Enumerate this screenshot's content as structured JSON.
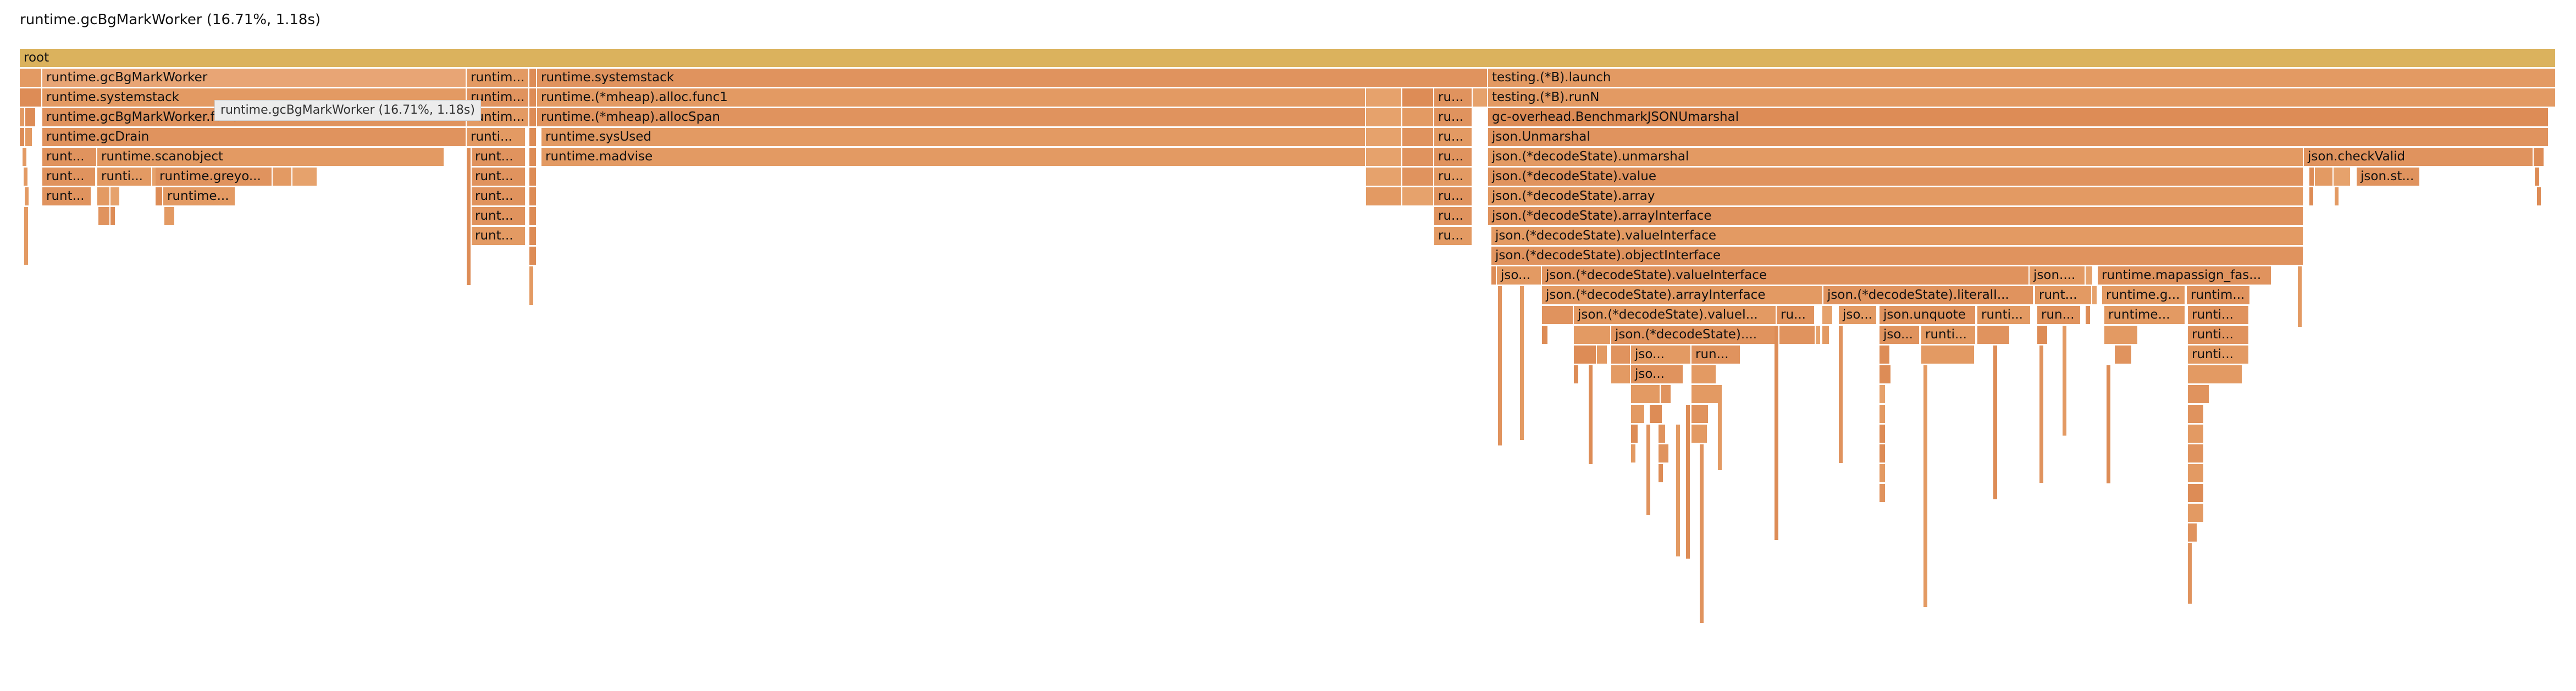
{
  "header": {
    "title": "runtime.gcBgMarkWorker (16.71%, 1.18s)"
  },
  "tooltip": {
    "text": "runtime.gcBgMarkWorker (16.71%, 1.18s)"
  },
  "frames": {
    "root": "root",
    "l1": {
      "a": "runtime.gcBgMarkWorker",
      "b": "runtim...",
      "c": "runtime.systemstack",
      "d": "testing.(*B).launch"
    },
    "l2": {
      "a": "runtime.systemstack",
      "b": "runtim...",
      "c": "runtime.(*mheap).alloc.func1",
      "d": "ru...",
      "e": "testing.(*B).runN"
    },
    "l3": {
      "a": "runtime.gcBgMarkWorker.func2",
      "b": "runtim...",
      "c": "runtime.(*mheap).allocSpan",
      "d": "ru...",
      "e": "gc-overhead.BenchmarkJSONUmarshal"
    },
    "l4": {
      "a": "runtime.gcDrain",
      "b": "runti...",
      "c": "runtime.sysUsed",
      "d": "ru...",
      "e": "json.Unmarshal"
    },
    "l5": {
      "a": "runt...",
      "b": "runtime.scanobject",
      "c": "runt...",
      "d": "runtime.madvise",
      "e": "ru...",
      "f": "json.(*decodeState).unmarshal",
      "g": "json.checkValid"
    },
    "l6": {
      "a": "runt...",
      "b": "runti...",
      "c": "runtime.greyo...",
      "d": "runt...",
      "e": "ru...",
      "f": "json.(*decodeState).value",
      "g": "json.st..."
    },
    "l7": {
      "a": "runt...",
      "b": "runtime...",
      "c": "runt...",
      "d": "ru...",
      "e": "json.(*decodeState).array"
    },
    "l8": {
      "a": "runt...",
      "b": "ru...",
      "c": "json.(*decodeState).arrayInterface"
    },
    "l9": {
      "a": "runt...",
      "b": "ru...",
      "c": "json.(*decodeState).valueInterface"
    },
    "l10": {
      "a": "json.(*decodeState).objectInterface"
    },
    "l11": {
      "a": "jso...",
      "b": "json.(*decodeState).valueInterface",
      "c": "json....",
      "d": "runtime.mapassign_fas..."
    },
    "l12": {
      "a": "json.(*decodeState).arrayInterface",
      "b": "json.(*decodeState).literalI...",
      "c": "runt...",
      "d": "runtime.g...",
      "e": "runtim..."
    },
    "l13": {
      "a": "json.(*decodeState).valueI...",
      "b": "ru...",
      "c": "jso...",
      "d": "json.unquote",
      "e": "runti...",
      "f": "run...",
      "g": "runtime...",
      "h": "runti..."
    },
    "l14": {
      "a": "json.(*decodeState)....",
      "b": "jso...",
      "c": "runti...",
      "d": "runti..."
    },
    "l15": {
      "a": "jso...",
      "b": "run...",
      "c": "runti..."
    },
    "l16": {
      "a": "jso..."
    }
  }
}
